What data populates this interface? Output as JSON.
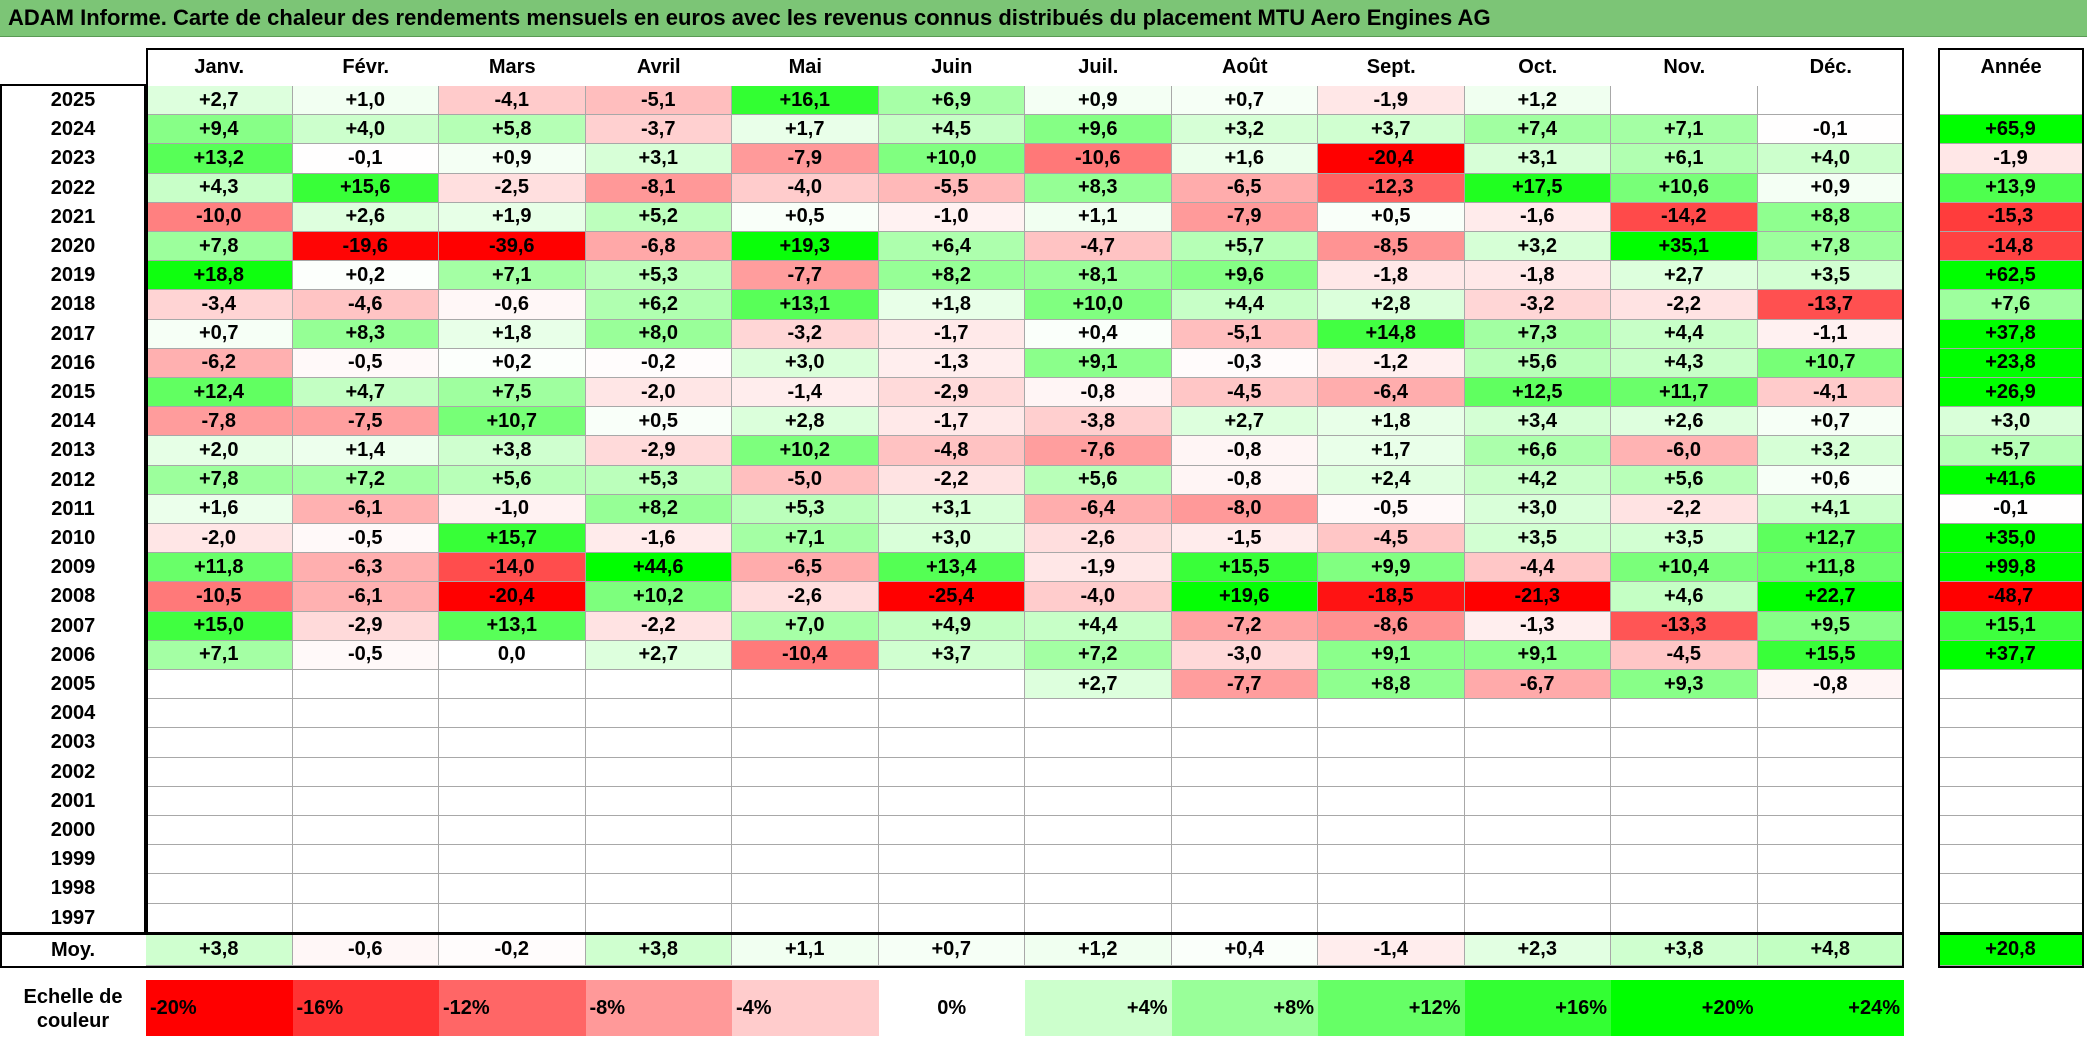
{
  "title": "ADAM Informe. Carte de chaleur des rendements mensuels en euros avec les revenus connus distribués du placement MTU Aero Engines AG",
  "months": [
    "Janv.",
    "Févr.",
    "Mars",
    "Avril",
    "Mai",
    "Juin",
    "Juil.",
    "Août",
    "Sept.",
    "Oct.",
    "Nov.",
    "Déc."
  ],
  "year_header": "Année",
  "avg_label": "Moy.",
  "scale_label_line1": "Echelle de",
  "scale_label_line2": "couleur",
  "colors": {
    "title_bg": "#7cc576",
    "negative": "#ff0000",
    "positive": "#00ff00",
    "neutral": "#ffffff"
  },
  "chart_data": {
    "type": "heatmap",
    "title": "ADAM Informe. Carte de chaleur des rendements mensuels en euros avec les revenus connus distribués du placement MTU Aero Engines AG",
    "columns": [
      "Janv.",
      "Févr.",
      "Mars",
      "Avril",
      "Mai",
      "Juin",
      "Juil.",
      "Août",
      "Sept.",
      "Oct.",
      "Nov.",
      "Déc."
    ],
    "rows": [
      {
        "year": "2025",
        "values": [
          "+2,7",
          "+1,0",
          "-4,1",
          "-5,1",
          "+16,1",
          "+6,9",
          "+0,9",
          "+0,7",
          "-1,9",
          "+1,2",
          "",
          ""
        ],
        "annual": ""
      },
      {
        "year": "2024",
        "values": [
          "+9,4",
          "+4,0",
          "+5,8",
          "-3,7",
          "+1,7",
          "+4,5",
          "+9,6",
          "+3,2",
          "+3,7",
          "+7,4",
          "+7,1",
          "-0,1"
        ],
        "annual": "+65,9"
      },
      {
        "year": "2023",
        "values": [
          "+13,2",
          "-0,1",
          "+0,9",
          "+3,1",
          "-7,9",
          "+10,0",
          "-10,6",
          "+1,6",
          "-20,4",
          "+3,1",
          "+6,1",
          "+4,0"
        ],
        "annual": "-1,9"
      },
      {
        "year": "2022",
        "values": [
          "+4,3",
          "+15,6",
          "-2,5",
          "-8,1",
          "-4,0",
          "-5,5",
          "+8,3",
          "-6,5",
          "-12,3",
          "+17,5",
          "+10,6",
          "+0,9"
        ],
        "annual": "+13,9"
      },
      {
        "year": "2021",
        "values": [
          "-10,0",
          "+2,6",
          "+1,9",
          "+5,2",
          "+0,5",
          "-1,0",
          "+1,1",
          "-7,9",
          "+0,5",
          "-1,6",
          "-14,2",
          "+8,8"
        ],
        "annual": "-15,3"
      },
      {
        "year": "2020",
        "values": [
          "+7,8",
          "-19,6",
          "-39,6",
          "-6,8",
          "+19,3",
          "+6,4",
          "-4,7",
          "+5,7",
          "-8,5",
          "+3,2",
          "+35,1",
          "+7,8"
        ],
        "annual": "-14,8"
      },
      {
        "year": "2019",
        "values": [
          "+18,8",
          "+0,2",
          "+7,1",
          "+5,3",
          "-7,7",
          "+8,2",
          "+8,1",
          "+9,6",
          "-1,8",
          "-1,8",
          "+2,7",
          "+3,5"
        ],
        "annual": "+62,5"
      },
      {
        "year": "2018",
        "values": [
          "-3,4",
          "-4,6",
          "-0,6",
          "+6,2",
          "+13,1",
          "+1,8",
          "+10,0",
          "+4,4",
          "+2,8",
          "-3,2",
          "-2,2",
          "-13,7"
        ],
        "annual": "+7,6"
      },
      {
        "year": "2017",
        "values": [
          "+0,7",
          "+8,3",
          "+1,8",
          "+8,0",
          "-3,2",
          "-1,7",
          "+0,4",
          "-5,1",
          "+14,8",
          "+7,3",
          "+4,4",
          "-1,1"
        ],
        "annual": "+37,8"
      },
      {
        "year": "2016",
        "values": [
          "-6,2",
          "-0,5",
          "+0,2",
          "-0,2",
          "+3,0",
          "-1,3",
          "+9,1",
          "-0,3",
          "-1,2",
          "+5,6",
          "+4,3",
          "+10,7"
        ],
        "annual": "+23,8"
      },
      {
        "year": "2015",
        "values": [
          "+12,4",
          "+4,7",
          "+7,5",
          "-2,0",
          "-1,4",
          "-2,9",
          "-0,8",
          "-4,5",
          "-6,4",
          "+12,5",
          "+11,7",
          "-4,1"
        ],
        "annual": "+26,9"
      },
      {
        "year": "2014",
        "values": [
          "-7,8",
          "-7,5",
          "+10,7",
          "+0,5",
          "+2,8",
          "-1,7",
          "-3,8",
          "+2,7",
          "+1,8",
          "+3,4",
          "+2,6",
          "+0,7"
        ],
        "annual": "+3,0"
      },
      {
        "year": "2013",
        "values": [
          "+2,0",
          "+1,4",
          "+3,8",
          "-2,9",
          "+10,2",
          "-4,8",
          "-7,6",
          "-0,8",
          "+1,7",
          "+6,6",
          "-6,0",
          "+3,2"
        ],
        "annual": "+5,7"
      },
      {
        "year": "2012",
        "values": [
          "+7,8",
          "+7,2",
          "+5,6",
          "+5,3",
          "-5,0",
          "-2,2",
          "+5,6",
          "-0,8",
          "+2,4",
          "+4,2",
          "+5,6",
          "+0,6"
        ],
        "annual": "+41,6"
      },
      {
        "year": "2011",
        "values": [
          "+1,6",
          "-6,1",
          "-1,0",
          "+8,2",
          "+5,3",
          "+3,1",
          "-6,4",
          "-8,0",
          "-0,5",
          "+3,0",
          "-2,2",
          "+4,1"
        ],
        "annual": "-0,1"
      },
      {
        "year": "2010",
        "values": [
          "-2,0",
          "-0,5",
          "+15,7",
          "-1,6",
          "+7,1",
          "+3,0",
          "-2,6",
          "-1,5",
          "-4,5",
          "+3,5",
          "+3,5",
          "+12,7"
        ],
        "annual": "+35,0"
      },
      {
        "year": "2009",
        "values": [
          "+11,8",
          "-6,3",
          "-14,0",
          "+44,6",
          "-6,5",
          "+13,4",
          "-1,9",
          "+15,5",
          "+9,9",
          "-4,4",
          "+10,4",
          "+11,8"
        ],
        "annual": "+99,8"
      },
      {
        "year": "2008",
        "values": [
          "-10,5",
          "-6,1",
          "-20,4",
          "+10,2",
          "-2,6",
          "-25,4",
          "-4,0",
          "+19,6",
          "-18,5",
          "-21,3",
          "+4,6",
          "+22,7"
        ],
        "annual": "-48,7"
      },
      {
        "year": "2007",
        "values": [
          "+15,0",
          "-2,9",
          "+13,1",
          "-2,2",
          "+7,0",
          "+4,9",
          "+4,4",
          "-7,2",
          "-8,6",
          "-1,3",
          "-13,3",
          "+9,5"
        ],
        "annual": "+15,1"
      },
      {
        "year": "2006",
        "values": [
          "+7,1",
          "-0,5",
          "0,0",
          "+2,7",
          "-10,4",
          "+3,7",
          "+7,2",
          "-3,0",
          "+9,1",
          "+9,1",
          "-4,5",
          "+15,5"
        ],
        "annual": "+37,7"
      },
      {
        "year": "2005",
        "values": [
          "",
          "",
          "",
          "",
          "",
          "",
          "+2,7",
          "-7,7",
          "+8,8",
          "-6,7",
          "+9,3",
          "-0,8"
        ],
        "annual": ""
      },
      {
        "year": "2004",
        "values": [
          "",
          "",
          "",
          "",
          "",
          "",
          "",
          "",
          "",
          "",
          "",
          ""
        ],
        "annual": ""
      },
      {
        "year": "2003",
        "values": [
          "",
          "",
          "",
          "",
          "",
          "",
          "",
          "",
          "",
          "",
          "",
          ""
        ],
        "annual": ""
      },
      {
        "year": "2002",
        "values": [
          "",
          "",
          "",
          "",
          "",
          "",
          "",
          "",
          "",
          "",
          "",
          ""
        ],
        "annual": ""
      },
      {
        "year": "2001",
        "values": [
          "",
          "",
          "",
          "",
          "",
          "",
          "",
          "",
          "",
          "",
          "",
          ""
        ],
        "annual": ""
      },
      {
        "year": "2000",
        "values": [
          "",
          "",
          "",
          "",
          "",
          "",
          "",
          "",
          "",
          "",
          "",
          ""
        ],
        "annual": ""
      },
      {
        "year": "1999",
        "values": [
          "",
          "",
          "",
          "",
          "",
          "",
          "",
          "",
          "",
          "",
          "",
          ""
        ],
        "annual": ""
      },
      {
        "year": "1998",
        "values": [
          "",
          "",
          "",
          "",
          "",
          "",
          "",
          "",
          "",
          "",
          "",
          ""
        ],
        "annual": ""
      },
      {
        "year": "1997",
        "values": [
          "",
          "",
          "",
          "",
          "",
          "",
          "",
          "",
          "",
          "",
          "",
          ""
        ],
        "annual": ""
      }
    ],
    "averages": [
      "+3,8",
      "-0,6",
      "-0,2",
      "+3,8",
      "+1,1",
      "+0,7",
      "+1,2",
      "+0,4",
      "-1,4",
      "+2,3",
      "+3,8",
      "+4,8"
    ],
    "average_annual": "+20,8",
    "scale": [
      "-20%",
      "-16%",
      "-12%",
      "-8%",
      "-4%",
      "0%",
      "+4%",
      "+8%",
      "+12%",
      "+16%",
      "+20%",
      "+24%"
    ]
  }
}
